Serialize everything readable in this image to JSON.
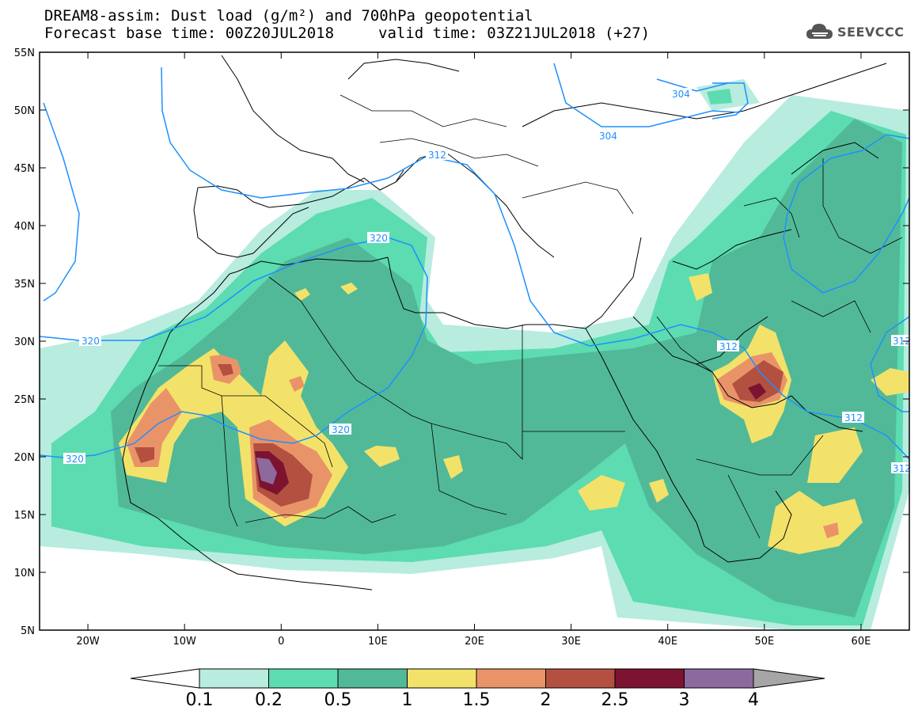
{
  "header": {
    "line1": "DREAM8-assim: Dust load (g/m²) and 700hPa geopotential",
    "line2": "Forecast base time: 00Z20JUL2018",
    "line2b": "valid time: 03Z21JUL2018 (+27)",
    "logo_text": "SEEVCCC"
  },
  "map": {
    "lon_range": [
      -25,
      65
    ],
    "lat_range": [
      5,
      55
    ],
    "x_ticks": [
      "20W",
      "10W",
      "0",
      "10E",
      "20E",
      "30E",
      "40E",
      "50E",
      "60E"
    ],
    "y_ticks": [
      "55N",
      "50N",
      "45N",
      "40N",
      "35N",
      "30N",
      "25N",
      "20N",
      "15N",
      "10N",
      "5N"
    ],
    "contour_labels": [
      "304",
      "304",
      "312",
      "320",
      "320",
      "320",
      "320",
      "312",
      "312",
      "312",
      "312"
    ]
  },
  "colorbar": {
    "labels": [
      "0.1",
      "0.2",
      "0.5",
      "1",
      "1.5",
      "2",
      "2.5",
      "3",
      "4"
    ],
    "colors": [
      "#ffffff",
      "#b7ecdf",
      "#5cdcb0",
      "#52b998",
      "#f3e26a",
      "#e99468",
      "#b35040",
      "#7c1330",
      "#8d6a9e",
      "#a6a6a6"
    ]
  },
  "colors": {
    "dust_levels": [
      "#b7ecdf",
      "#5cdcb0",
      "#52b998",
      "#f3e26a",
      "#e99468",
      "#b35040",
      "#7c1330",
      "#8d6a9e"
    ],
    "contour": "#1e90ff"
  }
}
